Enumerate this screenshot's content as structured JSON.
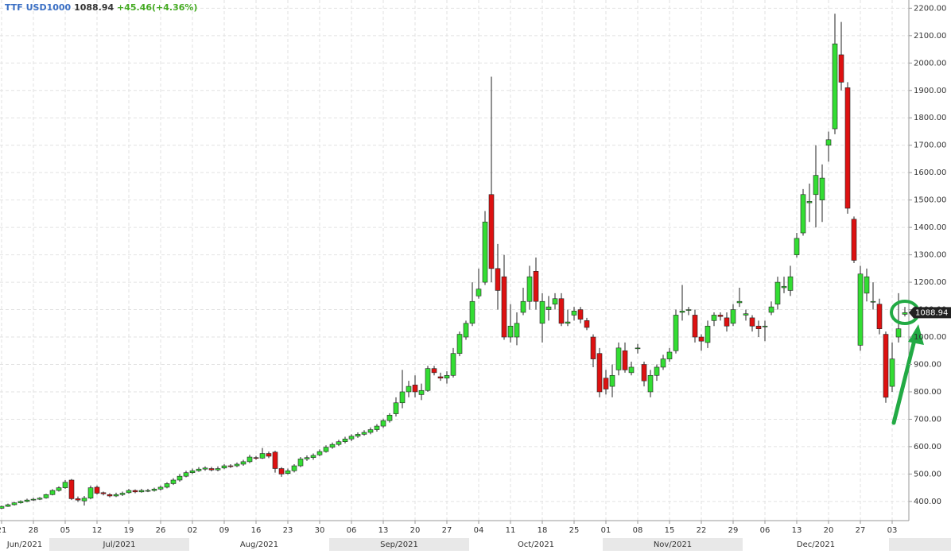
{
  "chart_data": {
    "type": "candlestick",
    "title": "TTF USD1000",
    "change": "+45.46(+4.36%)",
    "categories": [
      "21",
      null,
      null,
      null,
      null,
      "28",
      null,
      null,
      null,
      null,
      "05",
      null,
      null,
      null,
      null,
      "12",
      null,
      null,
      null,
      null,
      "19",
      null,
      null,
      null,
      null,
      "26",
      null,
      null,
      null,
      null,
      "02",
      null,
      null,
      null,
      null,
      "09",
      null,
      null,
      null,
      null,
      "16",
      null,
      null,
      null,
      null,
      "23",
      null,
      null,
      null,
      null,
      "30",
      null,
      null,
      null,
      null,
      "06",
      null,
      null,
      null,
      null,
      "13",
      null,
      null,
      null,
      null,
      "20",
      null,
      null,
      null,
      null,
      "27",
      null,
      null,
      null,
      null,
      "04",
      null,
      null,
      null,
      null,
      "11",
      null,
      null,
      null,
      null,
      "18",
      null,
      null,
      null,
      null,
      "25",
      null,
      null,
      null,
      null,
      "01",
      null,
      null,
      null,
      null,
      "08",
      null,
      null,
      null,
      null,
      "15",
      null,
      null,
      null,
      null,
      "22",
      null,
      null,
      null,
      null,
      "29",
      null,
      null,
      null,
      null,
      "06",
      null,
      null,
      null,
      null,
      "13",
      null,
      null,
      null,
      null,
      "20",
      null,
      null,
      null,
      null,
      "27",
      null,
      null,
      null,
      null,
      "03",
      null,
      null
    ],
    "months": [
      "Jun/2021",
      "Jul/2021",
      "Aug/2021",
      "Sep/2021",
      "Oct/2021",
      "Nov/2021",
      "Dec/2021"
    ],
    "series": [
      {
        "up_color": "#33dd33",
        "down_color": "#dd1111",
        "open": [
          375,
          382,
          388,
          395,
          400,
          405,
          408,
          413,
          425,
          440,
          450,
          478,
          410,
          402,
          412,
          452,
          432,
          425,
          420,
          425,
          432,
          440,
          435,
          438,
          440,
          445,
          452,
          465,
          478,
          492,
          505,
          512,
          518,
          520,
          515,
          522,
          530,
          530,
          536,
          545,
          560,
          558,
          575,
          580,
          520,
          502,
          512,
          530,
          555,
          560,
          570,
          582,
          598,
          608,
          618,
          628,
          638,
          645,
          652,
          662,
          675,
          695,
          720,
          760,
          800,
          825,
          790,
          805,
          885,
          855,
          850,
          860,
          940,
          1000,
          1050,
          1150,
          1200,
          1520,
          1250,
          1220,
          1000,
          1000,
          1090,
          1130,
          1240,
          1050,
          1100,
          1120,
          1140,
          1050,
          1080,
          1100,
          1060,
          1000,
          940,
          850,
          820,
          880,
          950,
          870,
          960,
          900,
          800,
          860,
          890,
          920,
          950,
          1090,
          1100,
          1080,
          1000,
          980,
          1060,
          1080,
          1070,
          1050,
          1125,
          1080,
          1070,
          1040,
          1040,
          1090,
          1120,
          1180,
          1170,
          1300,
          1380,
          1490,
          1520,
          1500,
          1700,
          1760,
          2030,
          1910,
          1430,
          970,
          1160,
          1130,
          1120,
          1010,
          820,
          1000,
          1083
        ],
        "high": [
          385,
          392,
          398,
          404,
          410,
          413,
          416,
          428,
          445,
          455,
          478,
          482,
          418,
          420,
          458,
          458,
          436,
          430,
          432,
          436,
          446,
          444,
          446,
          446,
          450,
          458,
          470,
          485,
          500,
          512,
          520,
          525,
          528,
          526,
          528,
          536,
          536,
          542,
          552,
          570,
          566,
          595,
          582,
          585,
          525,
          520,
          536,
          562,
          568,
          575,
          590,
          605,
          615,
          625,
          636,
          645,
          652,
          660,
          670,
          682,
          702,
          722,
          780,
          880,
          840,
          860,
          830,
          895,
          895,
          870,
          875,
          960,
          1020,
          1060,
          1200,
          1250,
          1460,
          1950,
          1340,
          1300,
          1120,
          1090,
          1180,
          1260,
          1290,
          1160,
          1150,
          1160,
          1160,
          1100,
          1110,
          1110,
          1070,
          1010,
          960,
          880,
          900,
          980,
          980,
          910,
          975,
          910,
          880,
          900,
          935,
          960,
          1100,
          1190,
          1110,
          1100,
          1010,
          1060,
          1090,
          1090,
          1090,
          1120,
          1180,
          1100,
          1080,
          1060,
          1060,
          1130,
          1220,
          1220,
          1260,
          1380,
          1540,
          1560,
          1700,
          1630,
          1750,
          2180,
          2150,
          1930,
          1440,
          1260,
          1250,
          1200,
          1140,
          1020,
          980,
          1160,
          1110
        ],
        "low": [
          372,
          380,
          385,
          392,
          397,
          402,
          405,
          410,
          422,
          436,
          446,
          405,
          398,
          385,
          408,
          425,
          422,
          415,
          416,
          420,
          428,
          430,
          432,
          434,
          436,
          440,
          448,
          460,
          472,
          488,
          500,
          508,
          512,
          510,
          510,
          518,
          522,
          525,
          530,
          540,
          552,
          555,
          558,
          505,
          490,
          498,
          506,
          525,
          548,
          552,
          565,
          578,
          592,
          602,
          612,
          620,
          632,
          640,
          645,
          655,
          668,
          688,
          710,
          740,
          780,
          780,
          770,
          800,
          860,
          840,
          830,
          852,
          930,
          990,
          1040,
          1140,
          1190,
          1200,
          1100,
          990,
          980,
          970,
          1080,
          1100,
          1100,
          980,
          1060,
          1100,
          1040,
          1040,
          1060,
          1050,
          1025,
          890,
          780,
          790,
          780,
          860,
          870,
          860,
          940,
          820,
          780,
          840,
          880,
          910,
          940,
          1060,
          1080,
          980,
          950,
          960,
          1040,
          1060,
          1020,
          1040,
          1110,
          1060,
          1020,
          1000,
          985,
          1080,
          1100,
          1160,
          1150,
          1290,
          1370,
          1420,
          1400,
          1420,
          1640,
          1740,
          1900,
          1450,
          1270,
          950,
          1130,
          1100,
          1010,
          760,
          800,
          980,
          1075
        ],
        "close": [
          382,
          388,
          395,
          400,
          405,
          408,
          412,
          425,
          440,
          450,
          470,
          410,
          405,
          412,
          450,
          430,
          428,
          420,
          425,
          430,
          440,
          435,
          440,
          440,
          445,
          452,
          465,
          478,
          492,
          505,
          512,
          518,
          522,
          515,
          520,
          530,
          528,
          536,
          545,
          562,
          558,
          575,
          565,
          520,
          500,
          512,
          530,
          555,
          560,
          568,
          582,
          598,
          608,
          618,
          628,
          638,
          645,
          652,
          662,
          675,
          695,
          715,
          760,
          800,
          820,
          800,
          805,
          885,
          870,
          850,
          860,
          940,
          1010,
          1050,
          1130,
          1175,
          1420,
          1250,
          1170,
          1000,
          1040,
          1050,
          1130,
          1220,
          1130,
          1130,
          1110,
          1140,
          1050,
          1055,
          1095,
          1065,
          1035,
          920,
          800,
          810,
          860,
          960,
          880,
          890,
          960,
          840,
          860,
          890,
          920,
          945,
          1080,
          1095,
          1100,
          1000,
          985,
          1040,
          1080,
          1075,
          1040,
          1100,
          1130,
          1085,
          1040,
          1030,
          1040,
          1110,
          1200,
          1185,
          1220,
          1360,
          1520,
          1495,
          1590,
          1580,
          1720,
          2070,
          1930,
          1470,
          1280,
          1230,
          1220,
          1130,
          1030,
          780,
          920,
          1030,
          1088.94
        ]
      }
    ],
    "ylim": [
      330,
      2230
    ],
    "yticks": [
      {
        "value": 400,
        "label": "400.00"
      },
      {
        "value": 500,
        "label": "500.00"
      },
      {
        "value": 600,
        "label": "600.00"
      },
      {
        "value": 700,
        "label": "700.00"
      },
      {
        "value": 800,
        "label": "800.00"
      },
      {
        "value": 900,
        "label": "900.00"
      },
      {
        "value": 1000,
        "label": "1000.00"
      },
      {
        "value": 1100,
        "label": "1100.00"
      },
      {
        "value": 1200,
        "label": "1200.00"
      },
      {
        "value": 1300,
        "label": "1300.00"
      },
      {
        "value": 1400,
        "label": "1400.00"
      },
      {
        "value": 1500,
        "label": "1500.00"
      },
      {
        "value": 1600,
        "label": "1600.00"
      },
      {
        "value": 1700,
        "label": "1700.00"
      },
      {
        "value": 1800,
        "label": "1800.00"
      },
      {
        "value": 1900,
        "label": "1900.00"
      },
      {
        "value": 2000,
        "label": "2000.00"
      },
      {
        "value": 2100,
        "label": "2100.00"
      },
      {
        "value": 2200,
        "label": "2200.00"
      }
    ],
    "grid": true
  }
}
